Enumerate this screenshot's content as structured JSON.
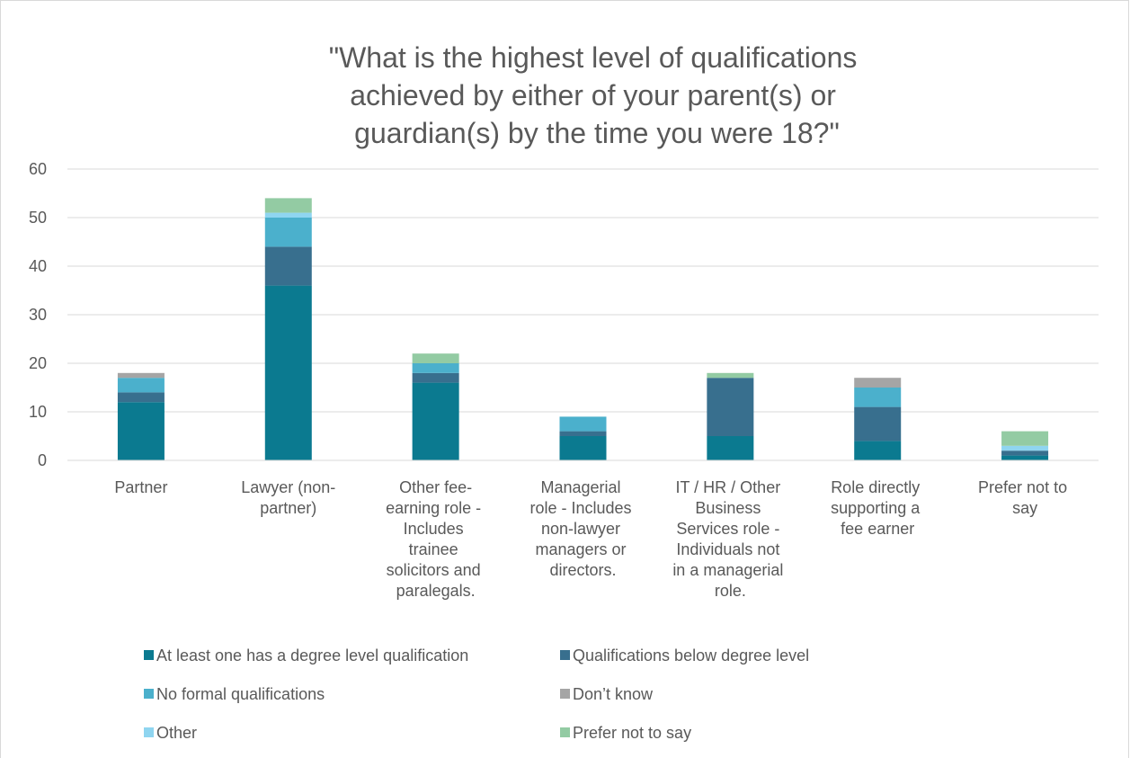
{
  "chart_data": {
    "type": "bar",
    "stacked": true,
    "title": "\"What is the highest level of qualifications achieved by either of your parent(s) or guardian(s) by the time you were 18?\"",
    "categories": [
      "Partner",
      "Lawyer (non-partner)",
      "Other fee-earning role - Includes trainee solicitors and paralegals.",
      "Managerial role - Includes non-lawyer managers or directors.",
      "IT / HR / Other Business Services role - Individuals not in a managerial role.",
      "Role directly supporting a fee earner",
      "Prefer not to say"
    ],
    "series": [
      {
        "name": "At least one has a degree level qualification",
        "color": "#0b7a90",
        "values": [
          12,
          36,
          16,
          5,
          5,
          4,
          1
        ]
      },
      {
        "name": "Qualifications below degree level",
        "color": "#386f8e",
        "values": [
          2,
          8,
          2,
          1,
          12,
          7,
          1
        ]
      },
      {
        "name": "No formal qualifications",
        "color": "#4bb0cc",
        "values": [
          3,
          6,
          2,
          3,
          0,
          4,
          0
        ]
      },
      {
        "name": "Don’t know",
        "color": "#a5a5a5",
        "values": [
          1,
          0,
          0,
          0,
          0,
          2,
          0
        ]
      },
      {
        "name": "Other",
        "color": "#8fd5f0",
        "values": [
          0,
          1,
          0,
          0,
          0,
          0,
          1
        ]
      },
      {
        "name": "Prefer not to say",
        "color": "#93cba3",
        "values": [
          0,
          3,
          2,
          0,
          1,
          0,
          3
        ]
      }
    ],
    "ylim": [
      0,
      60
    ],
    "yticks": [
      0,
      10,
      20,
      30,
      40,
      50,
      60
    ],
    "grid": true,
    "legend": "bottom"
  }
}
